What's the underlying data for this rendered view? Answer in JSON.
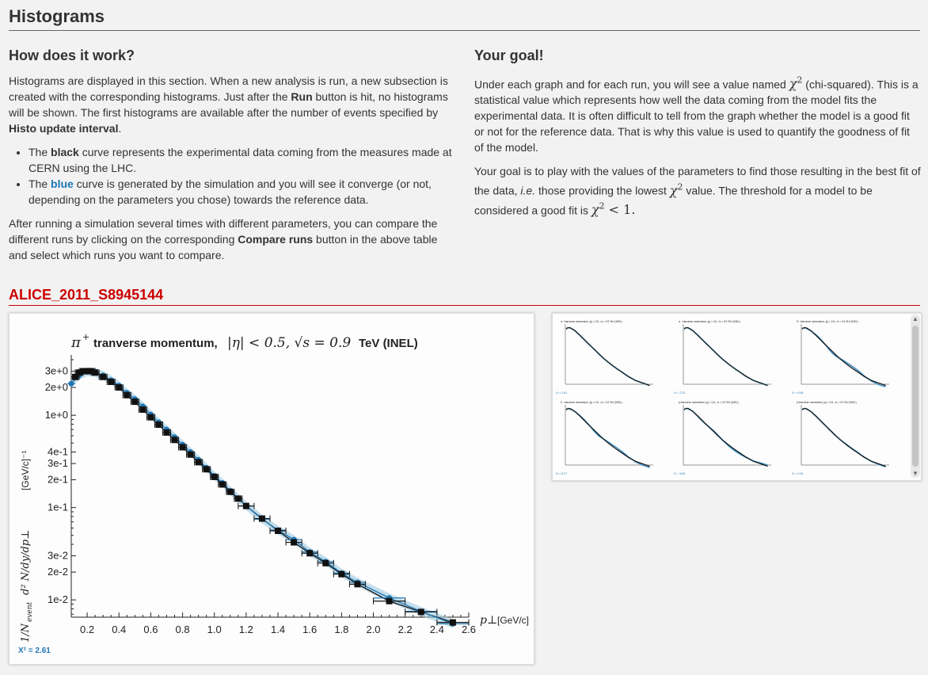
{
  "page": {
    "title": "Histograms"
  },
  "left": {
    "heading": "How does it work?",
    "p1_a": "Histograms are displayed in this section. When a new analysis is run, a new subsection is created with the corresponding histograms. Just after the ",
    "p1_run": "Run",
    "p1_b": " button is hit, no histograms will be shown. The first histograms are available after the number of events specified by ",
    "p1_interval": "Histo update interval",
    "p1_c": ".",
    "b1_a": "The ",
    "b1_black": "black",
    "b1_b": " curve represents the experimental data coming from the measures made at CERN using the LHC.",
    "b2_a": "The ",
    "b2_blue": "blue",
    "b2_b": " curve is generated by the simulation and you will see it converge (or not, depending on the parameters you chose) towards the reference data.",
    "p2_a": "After running a simulation several times with different parameters, you can compare the different runs by clicking on the corresponding ",
    "p2_compare": "Compare runs",
    "p2_b": " button in the above table and select which runs you want to compare."
  },
  "right": {
    "heading": "Your goal!",
    "p1_a": "Under each graph and for each run, you will see a value named ",
    "chi": "χ",
    "two": "2",
    "p1_b": " (chi-squared). This is a statistical value which represents how well the data coming from the model fits the experimental data. It is often difficult to tell from the graph whether the model is a good fit or not for the reference data. That is why this value is used to quantify the goodness of fit of the model.",
    "p2_a": "Your goal is to play with the values of the parameters to find those resulting in the best fit of the data, ",
    "p2_ie": "i.e.",
    "p2_b": " those providing the lowest ",
    "p2_c": " value. The threshold for a model to be considered a good fit is ",
    "threshold": " < 1."
  },
  "analysis": {
    "name": "ALICE_2011_S8945144",
    "chi2_label": "X² = 2.61"
  },
  "colors": {
    "data": "#111111",
    "mc": "#1f77b4",
    "band": "#9ecae1",
    "section": "#cc0000"
  },
  "chart_data": {
    "type": "line",
    "title_math": "π⁺ tranverse momentum, |η| < 0.5, √s = 0.9 TeV (INEL)",
    "title_pre": "π",
    "title_sup": "+",
    "title_text": " tranverse momentum, ",
    "title_eta": "|η| < 0.5, √s = 0.9",
    "title_post": " TeV (INEL)",
    "xlabel_math": "p⊥",
    "xlabel_unit": "[GeV/c]",
    "ylabel_a": "1/N",
    "ylabel_sub": "event",
    "ylabel_b": " d² N/dy/dp⊥",
    "ylabel_unit": "[GeV/c]⁻¹",
    "xlim": [
      0.1,
      2.6
    ],
    "ylim": [
      0.0065,
      4.5
    ],
    "yscale": "log",
    "x_ticks": [
      "0.2",
      "0.4",
      "0.6",
      "0.8",
      "1.0",
      "1.2",
      "1.4",
      "1.6",
      "1.8",
      "2.0",
      "2.2",
      "2.4",
      "2.6"
    ],
    "y_ticks": [
      {
        "v": 3.0,
        "label": "3e+0"
      },
      {
        "v": 2.0,
        "label": "2e+0"
      },
      {
        "v": 1.0,
        "label": "1e+0"
      },
      {
        "v": 0.4,
        "label": "4e-1"
      },
      {
        "v": 0.3,
        "label": "3e-1"
      },
      {
        "v": 0.2,
        "label": "2e-1"
      },
      {
        "v": 0.1,
        "label": "1e-1"
      },
      {
        "v": 0.03,
        "label": "3e-2"
      },
      {
        "v": 0.02,
        "label": "2e-2"
      },
      {
        "v": 0.01,
        "label": "1e-2"
      }
    ],
    "series": [
      {
        "name": "data",
        "x": [
          0.125,
          0.15,
          0.175,
          0.2,
          0.225,
          0.25,
          0.3,
          0.35,
          0.4,
          0.45,
          0.5,
          0.55,
          0.6,
          0.65,
          0.7,
          0.75,
          0.8,
          0.85,
          0.9,
          0.95,
          1.0,
          1.05,
          1.1,
          1.15,
          1.2,
          1.3,
          1.4,
          1.5,
          1.6,
          1.7,
          1.8,
          1.9,
          2.1,
          2.3,
          2.5
        ],
        "y": [
          2.6,
          2.9,
          3.0,
          3.0,
          3.0,
          2.9,
          2.6,
          2.3,
          2.0,
          1.65,
          1.4,
          1.15,
          0.95,
          0.79,
          0.65,
          0.54,
          0.45,
          0.375,
          0.31,
          0.26,
          0.215,
          0.178,
          0.148,
          0.125,
          0.104,
          0.076,
          0.056,
          0.042,
          0.032,
          0.025,
          0.019,
          0.0148,
          0.0097,
          0.0074,
          0.0057
        ]
      },
      {
        "name": "mc",
        "x": [
          0.1,
          0.15,
          0.2,
          0.25,
          0.3,
          0.35,
          0.4,
          0.45,
          0.5,
          0.55,
          0.6,
          0.65,
          0.7,
          0.75,
          0.8,
          0.85,
          0.9,
          0.95,
          1.0,
          1.05,
          1.1,
          1.15,
          1.2,
          1.3,
          1.4,
          1.5,
          1.6,
          1.7,
          1.8,
          1.9,
          2.1,
          2.3,
          2.5
        ],
        "y": [
          2.2,
          2.7,
          2.95,
          2.9,
          2.7,
          2.4,
          2.1,
          1.75,
          1.5,
          1.25,
          1.02,
          0.84,
          0.7,
          0.58,
          0.48,
          0.4,
          0.33,
          0.27,
          0.22,
          0.185,
          0.152,
          0.126,
          0.104,
          0.075,
          0.057,
          0.045,
          0.033,
          0.026,
          0.0195,
          0.0155,
          0.0105,
          0.0075,
          0.0055
        ]
      }
    ]
  },
  "thumbnails": [
    {
      "title": "π⁺ tranverse momentum, |η| < 0.5, √s = 0.9 TeV (INEL)",
      "chi2": "X² = 2.61",
      "dev": 0.0
    },
    {
      "title": "π⁻ tranverse momentum, |η| < 0.5, √s = 0.9 TeV (INEL)",
      "chi2": "X² = 2.23",
      "dev": 0.0
    },
    {
      "title": "K⁺ tranverse momentum, |η| < 0.5, √s = 0.9 TeV (INEL)",
      "chi2": "X² = 9.48",
      "dev": 0.35
    },
    {
      "title": "K⁻ tranverse momentum, |η| < 0.5, √s = 0.9 TeV (INEL)",
      "chi2": "X² = 8.17",
      "dev": 0.3
    },
    {
      "title": "p tranverse momentum, |η| < 0.5, √s = 0.9 TeV (INEL)",
      "chi2": "X² = 5.06",
      "dev": -0.2
    },
    {
      "title": "p̄ tranverse momentum, |η| < 0.5, √s = 0.9 TeV (INEL)",
      "chi2": "X² = 4.34",
      "dev": 0.1
    }
  ]
}
